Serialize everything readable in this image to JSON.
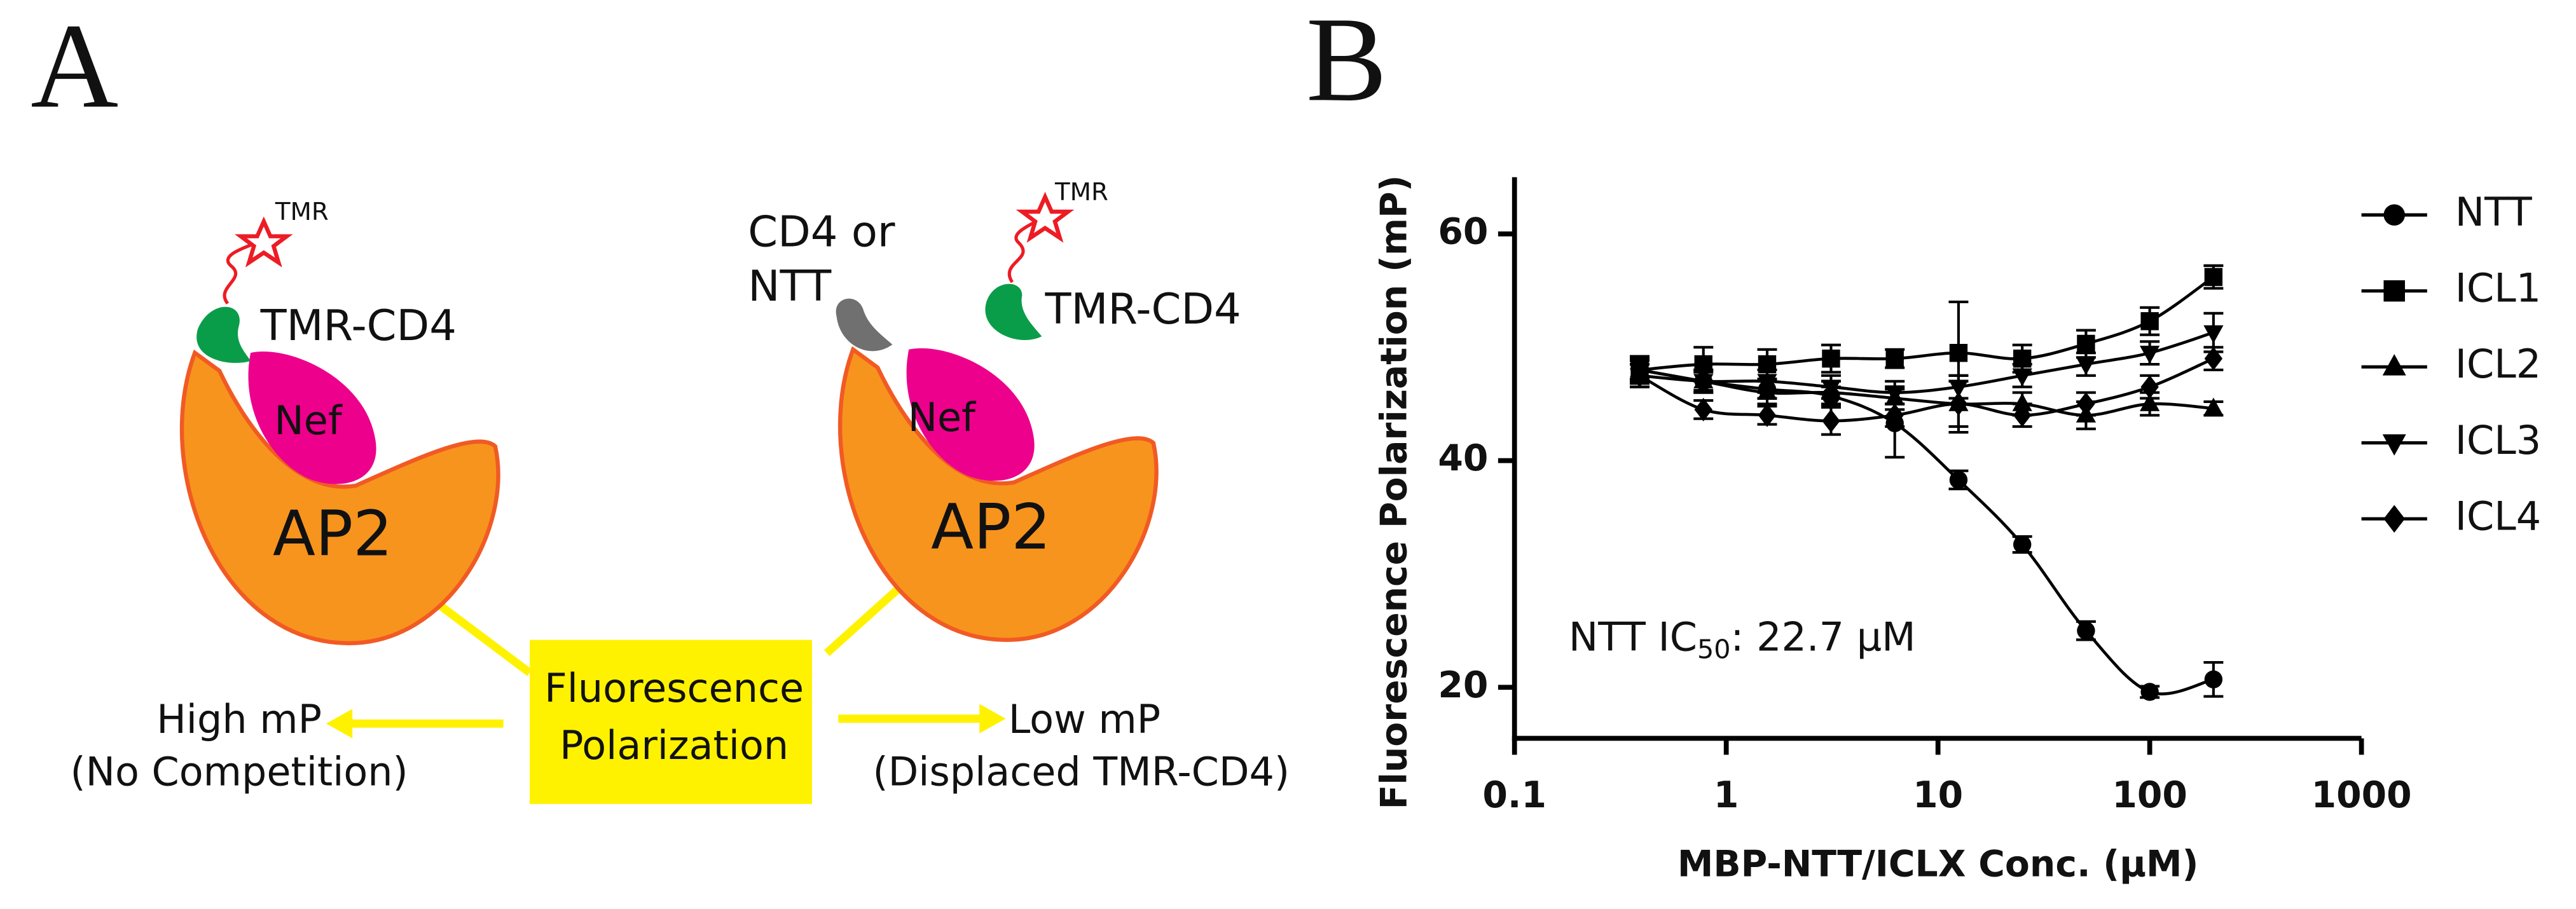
{
  "diagram": {
    "panel_label": "A",
    "left": {
      "tag": "TMR",
      "probe": "TMR-CD4",
      "nef": "Nef",
      "ap2": "AP2"
    },
    "right": {
      "competitor": [
        "CD4 or",
        "NTT"
      ],
      "tag": "TMR",
      "probe": "TMR-CD4",
      "nef": "Nef",
      "ap2": "AP2"
    },
    "box": [
      "Fluorescence",
      "Polarization"
    ],
    "left_outcome": [
      "High mP",
      "(No Competition)"
    ],
    "right_outcome": [
      "Low mP",
      "(Displaced TMR-CD4)"
    ]
  },
  "chart_data": {
    "type": "scatter",
    "panel_label": "B",
    "x_label": "MBP-NTT/ICLX Conc. (µM)",
    "y_label": "Fluorescence Polarization (mP)",
    "annotation": [
      "NTT IC",
      "50",
      ": 22.7 µM"
    ],
    "x_scale": "log",
    "xlim": [
      0.1,
      1000
    ],
    "xticks": [
      0.1,
      1,
      10,
      100,
      1000
    ],
    "ylim": [
      15.5,
      65
    ],
    "yticks": [
      20,
      40,
      60
    ],
    "legend": "right",
    "x": [
      0.39,
      0.78,
      1.56,
      3.125,
      6.25,
      12.5,
      25,
      50,
      100,
      200
    ],
    "series": [
      {
        "name": "NTT",
        "color": "#000000",
        "marker": "circle",
        "values": [
          48,
          47,
          46.3,
          45.7,
          43.3,
          38.3,
          32.6,
          25,
          19.6,
          20.7
        ],
        "errors": [
          0.8,
          0.8,
          0.8,
          0.8,
          3,
          0.8,
          0.7,
          0.8,
          0.5,
          1.5
        ]
      },
      {
        "name": "ICL1",
        "color": "#000000",
        "marker": "square",
        "values": [
          48,
          48.5,
          48.5,
          49,
          49,
          49.5,
          49,
          50.3,
          52.3,
          56.2
        ],
        "errors": [
          1.2,
          1.5,
          1.3,
          1.2,
          0.8,
          4.5,
          1.2,
          1.2,
          1.2,
          1
        ]
      },
      {
        "name": "ICL2",
        "color": "#000000",
        "marker": "triangle-up",
        "values": [
          48,
          47,
          46,
          46,
          45.5,
          45,
          45,
          44,
          45,
          44.6
        ],
        "errors": [
          1,
          1,
          1,
          1,
          1,
          2.5,
          1,
          1.2,
          1,
          0.6
        ]
      },
      {
        "name": "ICL3",
        "color": "#000000",
        "marker": "triangle-down",
        "values": [
          47.5,
          47,
          47,
          46.5,
          46,
          46.5,
          47.5,
          48.5,
          49.5,
          51.3
        ],
        "errors": [
          1,
          1,
          1,
          1,
          1,
          1,
          1,
          1,
          1,
          1.7
        ]
      },
      {
        "name": "ICL4",
        "color": "#000000",
        "marker": "diamond",
        "values": [
          47.5,
          44.5,
          44,
          43.5,
          44,
          45,
          44,
          45,
          46.5,
          49
        ],
        "errors": [
          1,
          0.8,
          0.8,
          1.2,
          1,
          2,
          1,
          1,
          1,
          1
        ]
      }
    ]
  }
}
